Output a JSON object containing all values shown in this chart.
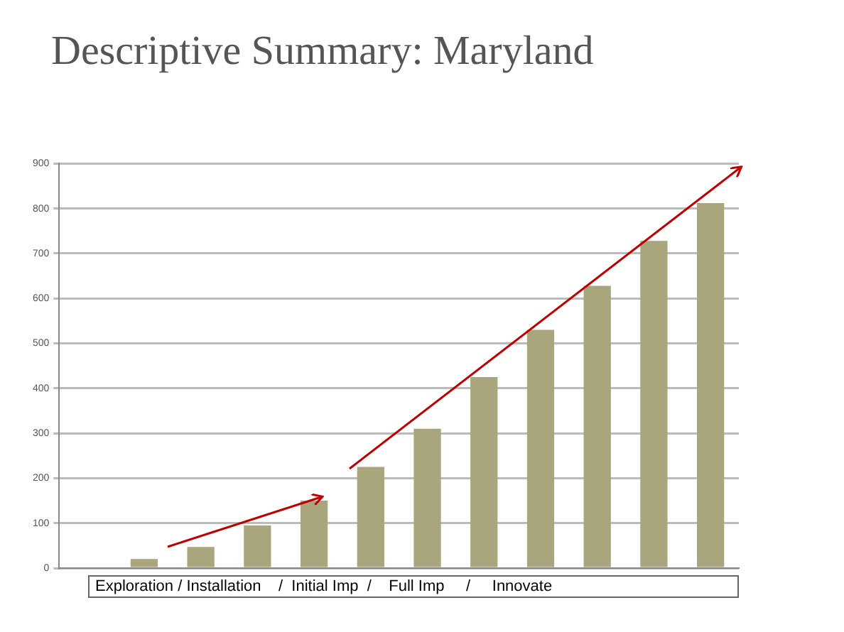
{
  "chart_data": {
    "type": "bar",
    "title": "Descriptive Summary: Maryland",
    "categories": [
      null,
      null,
      null,
      null,
      null,
      null,
      null,
      null,
      null,
      null,
      null,
      null
    ],
    "values": [
      0,
      20,
      47,
      95,
      150,
      225,
      310,
      425,
      530,
      628,
      728,
      812
    ],
    "color": "#a9a57c",
    "ylim": [
      0,
      900
    ],
    "yticks": [
      0,
      100,
      200,
      300,
      400,
      500,
      600,
      700,
      800,
      900
    ],
    "grid": "y",
    "annotations": [
      "Exploration / Installation    /  Initial Imp  /    Full Imp     /     Innovate"
    ]
  }
}
